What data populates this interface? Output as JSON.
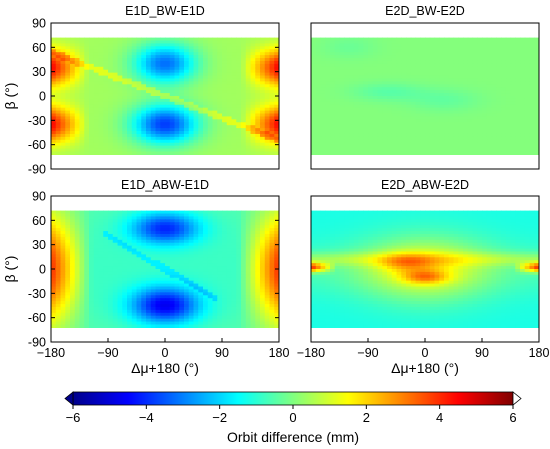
{
  "chart_data": [
    {
      "type": "heatmap",
      "title": "E1D_BW-E1D",
      "xlabel": "",
      "ylabel": "β (°)",
      "xlim": [
        -180,
        180
      ],
      "ylim": [
        -90,
        90
      ],
      "xticks": [],
      "yticks": [
        "90",
        "60",
        "30",
        "0",
        "-30",
        "-60",
        "-90"
      ],
      "beta_coverage": [
        -72,
        72
      ],
      "pattern": "positive (~3 to 4.5 mm) near ±180° with maxima at β≈±35°; negative (~-3 to -4 mm) near 0° with minima at β≈±40°; diagonal discontinuity band",
      "lobes": [
        {
          "x": 180,
          "y": 35,
          "value": 4.5
        },
        {
          "x": -180,
          "y": 35,
          "value": 4.5
        },
        {
          "x": 180,
          "y": -35,
          "value": 4.5
        },
        {
          "x": -180,
          "y": -35,
          "value": 4.5
        },
        {
          "x": 0,
          "y": 40,
          "value": -3.5
        },
        {
          "x": 0,
          "y": -35,
          "value": -4.0
        }
      ]
    },
    {
      "type": "heatmap",
      "title": "E2D_BW-E2D",
      "xlabel": "",
      "ylabel": "",
      "xlim": [
        -180,
        180
      ],
      "ylim": [
        -90,
        90
      ],
      "xticks": [],
      "yticks": [],
      "beta_coverage": [
        -72,
        72
      ],
      "pattern": "near zero everywhere (~-0.5 to 0.5 mm)",
      "lobes": [
        {
          "x": -60,
          "y": 5,
          "value": -0.5
        },
        {
          "x": 30,
          "y": -5,
          "value": -0.4
        },
        {
          "x": -120,
          "y": 60,
          "value": -0.4
        }
      ]
    },
    {
      "type": "heatmap",
      "title": "E1D_ABW-E1D",
      "xlabel": "Δμ+180 (°)",
      "ylabel": "β (°)",
      "xlim": [
        -180,
        180
      ],
      "ylim": [
        -90,
        90
      ],
      "xticks": [
        "−180",
        "−90",
        "0",
        "90",
        "180"
      ],
      "yticks": [
        "90",
        "60",
        "30",
        "0",
        "-30",
        "-60",
        "-90"
      ],
      "beta_coverage": [
        -72,
        72
      ],
      "pattern": "positive (~4 to 4.5 mm) near ±180° across most β; negative (~-3.5 to -4 mm) near 0° at β≈±45°",
      "lobes": [
        {
          "x": 180,
          "y": 20,
          "value": 4.5
        },
        {
          "x": -180,
          "y": 20,
          "value": 4.5
        },
        {
          "x": 180,
          "y": -25,
          "value": 4.5
        },
        {
          "x": -180,
          "y": -25,
          "value": 4.5
        },
        {
          "x": 0,
          "y": 50,
          "value": -3.5
        },
        {
          "x": 0,
          "y": -45,
          "value": -4.0
        }
      ]
    },
    {
      "type": "heatmap",
      "title": "E2D_ABW-E2D",
      "xlabel": "Δμ+180 (°)",
      "ylabel": "",
      "xlim": [
        -180,
        180
      ],
      "ylim": [
        -90,
        90
      ],
      "xticks": [
        "−180",
        "−90",
        "0",
        "90",
        "180"
      ],
      "yticks": [],
      "beta_coverage": [
        -72,
        72
      ],
      "pattern": "negative (~-1.5 mm) at high |β|; positive (~1.5 to 3.5 mm) band near β≈0 with maxima at ±180° and near Δμ≈0",
      "lobes": [
        {
          "x": 180,
          "y": 2,
          "value": 3.5
        },
        {
          "x": -180,
          "y": 2,
          "value": 3.5
        },
        {
          "x": 0,
          "y": -10,
          "value": 3.0
        },
        {
          "x": -30,
          "y": 8,
          "value": 2.0
        }
      ]
    }
  ],
  "colorbar": {
    "label": "Orbit difference (mm)",
    "range": [
      -6,
      6
    ],
    "ticks": [
      "−6",
      "−4",
      "−2",
      "0",
      "2",
      "4",
      "6"
    ],
    "colormap": "jet (dark blue → cyan → green → yellow → red → dark red)"
  },
  "colors": {
    "cmap": [
      "#00008b",
      "#0000ff",
      "#0080ff",
      "#00ffff",
      "#80ff80",
      "#ffff00",
      "#ff8000",
      "#ff0000",
      "#800000"
    ],
    "background": "#ffffff",
    "axis": "#000000"
  }
}
